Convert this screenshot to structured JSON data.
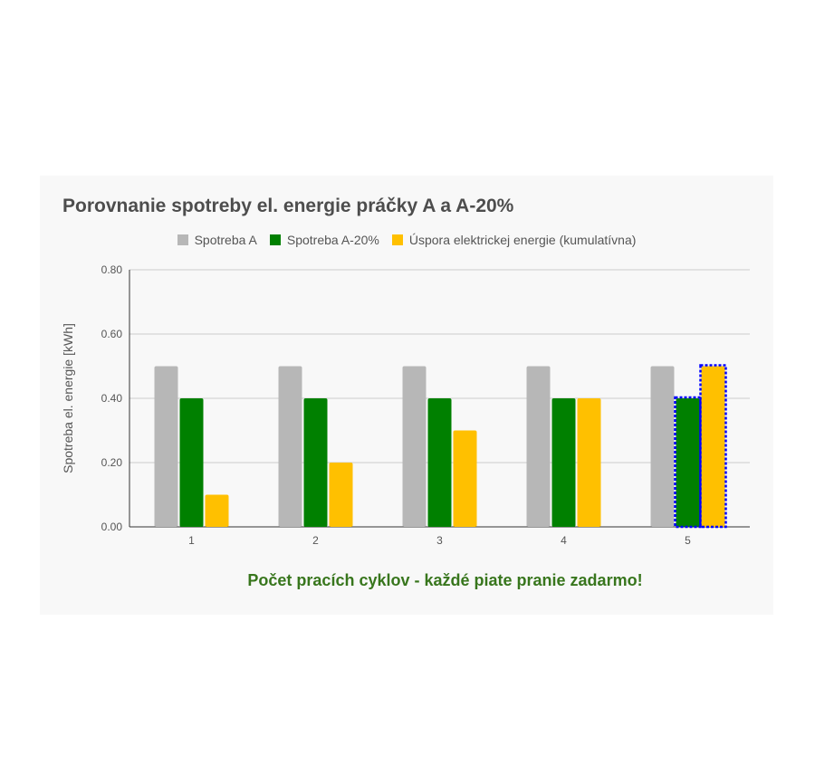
{
  "chart_data": {
    "type": "bar",
    "title": "Porovnanie spotreby el. energie práčky A a A-20%",
    "xlabel": "Počet pracích cyklov - každé piate pranie zadarmo!",
    "ylabel": "Spotreba el. energie [kWh]",
    "categories": [
      "1",
      "2",
      "3",
      "4",
      "5"
    ],
    "ylim": [
      0,
      0.8
    ],
    "yticks": [
      "0.00",
      "0.20",
      "0.40",
      "0.60",
      "0.80"
    ],
    "grid": true,
    "legend_position": "top",
    "series": [
      {
        "name": "Spotreba A",
        "color": "#b7b7b7",
        "values": [
          0.5,
          0.5,
          0.5,
          0.5,
          0.5
        ]
      },
      {
        "name": "Spotreba A-20%",
        "color": "#008000",
        "values": [
          0.4,
          0.4,
          0.4,
          0.4,
          0.4
        ]
      },
      {
        "name": "Úspora elektrickej energie (kumulatívna)",
        "color": "#ffc000",
        "values": [
          0.1,
          0.2,
          0.3,
          0.4,
          0.5
        ]
      }
    ],
    "highlighted": {
      "category": "5",
      "series": [
        "Spotreba A-20%",
        "Úspora elektrickej energie (kumulatívna)"
      ],
      "outline_color": "#0000ff",
      "outline_style": "dotted"
    }
  }
}
